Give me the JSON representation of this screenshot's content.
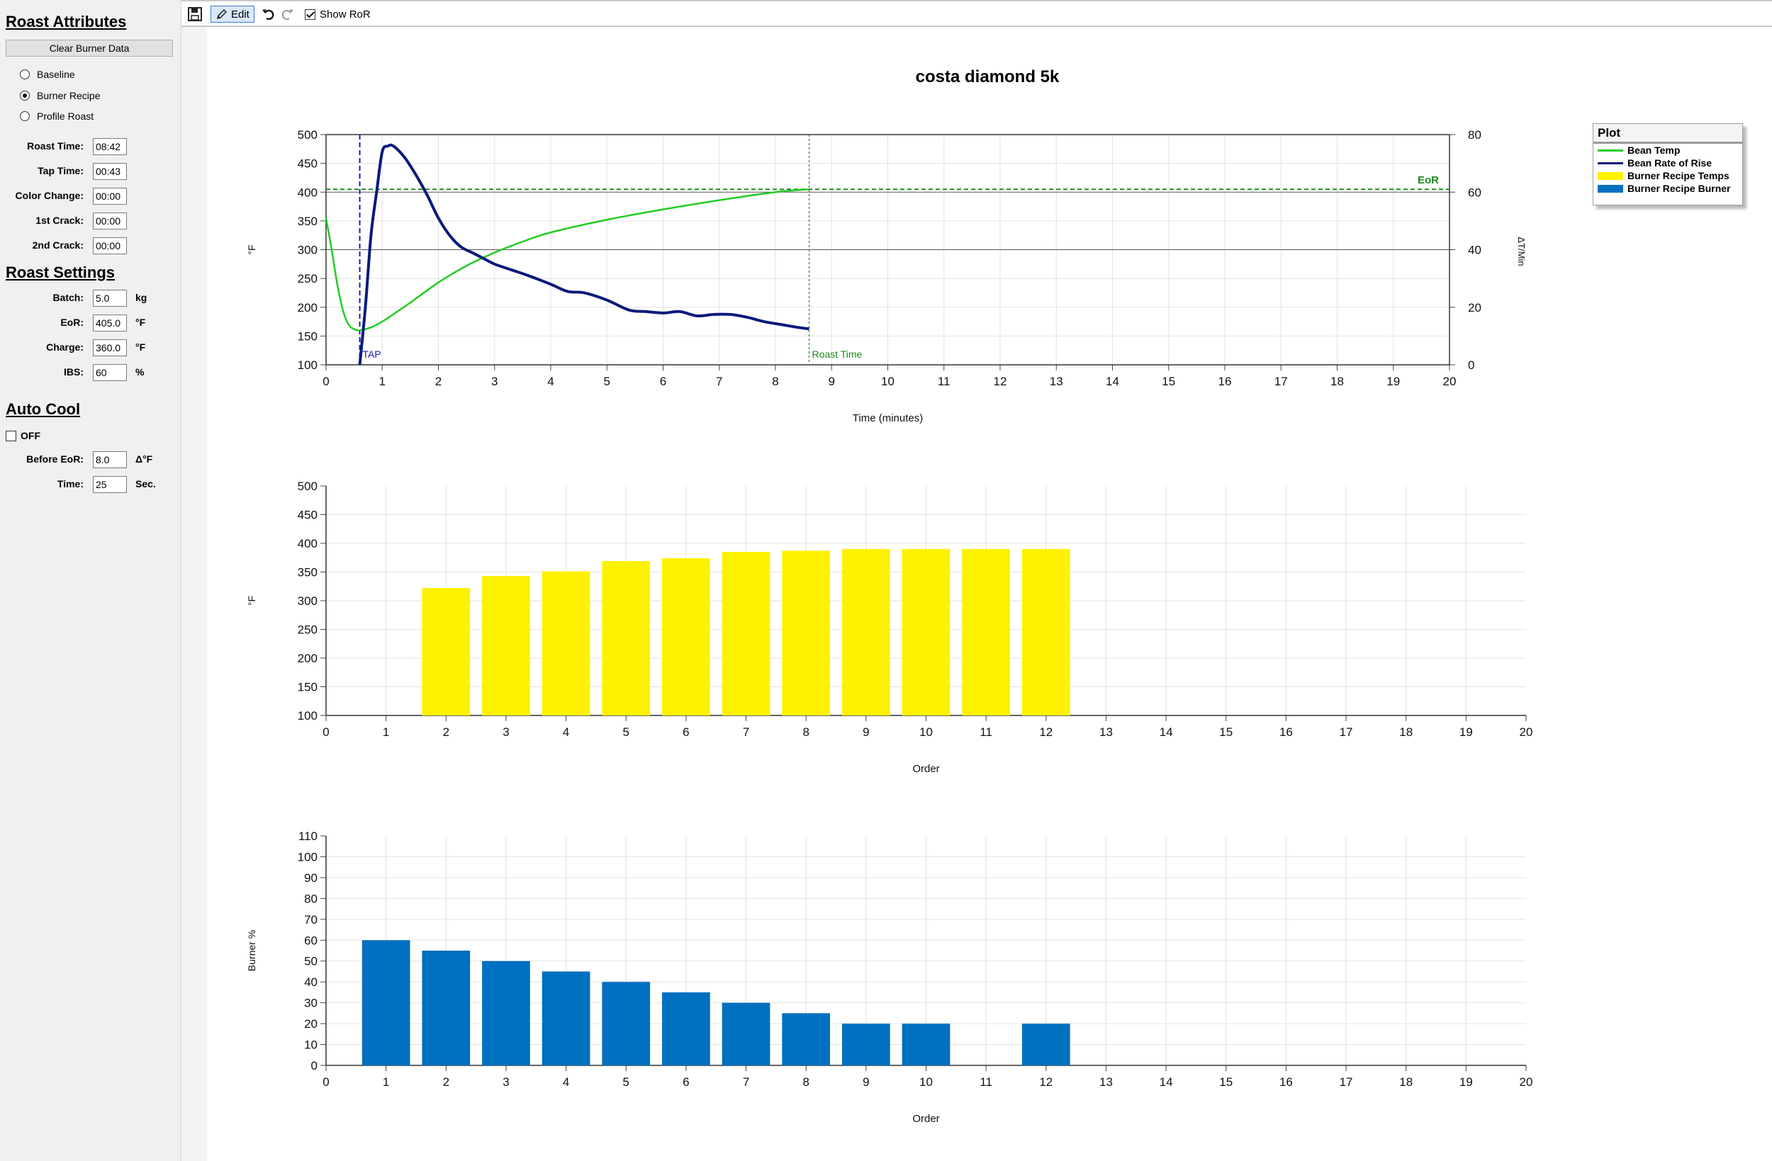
{
  "toolbar": {
    "edit_label": "Edit",
    "show_ror_label": "Show RoR",
    "show_ror_checked": true
  },
  "roast_attributes": {
    "title": "Roast Attributes",
    "clear_button": "Clear Burner Data",
    "modes": [
      {
        "label": "Baseline",
        "selected": false
      },
      {
        "label": "Burner Recipe",
        "selected": true
      },
      {
        "label": "Profile Roast",
        "selected": false
      }
    ],
    "fields": [
      {
        "label": "Roast Time:",
        "value": "08:42"
      },
      {
        "label": "Tap Time:",
        "value": "00:43"
      },
      {
        "label": "Color Change:",
        "value": "00:00"
      },
      {
        "label": "1st Crack:",
        "value": "00:00"
      },
      {
        "label": "2nd Crack:",
        "value": "00:00"
      }
    ]
  },
  "roast_settings": {
    "title": "Roast Settings",
    "fields": [
      {
        "label": "Batch:",
        "value": "5.0",
        "unit": "kg"
      },
      {
        "label": "EoR:",
        "value": "405.0",
        "unit": "°F"
      },
      {
        "label": "Charge:",
        "value": "360.0",
        "unit": "°F"
      },
      {
        "label": "IBS:",
        "value": "60",
        "unit": "%"
      }
    ]
  },
  "auto_cool": {
    "title": "Auto Cool",
    "toggle_label": "OFF",
    "enabled": false,
    "fields": [
      {
        "label": "Before EoR:",
        "value": "8.0",
        "unit": "Δ°F"
      },
      {
        "label": "Time:",
        "value": "25",
        "unit": "Sec."
      }
    ]
  },
  "legend": {
    "title": "Plot",
    "items": [
      {
        "label": "Bean Temp",
        "color": "#22cc22",
        "kind": "line"
      },
      {
        "label": "Bean Rate of Rise",
        "color": "#0a1a7a",
        "kind": "line"
      },
      {
        "label": "Burner Recipe Temps",
        "color": "#fff200",
        "kind": "box"
      },
      {
        "label": "Burner Recipe Burner",
        "color": "#0070c0",
        "kind": "box"
      }
    ]
  },
  "chart_data": [
    {
      "type": "line",
      "title": "costa diamond 5k",
      "xlabel": "Time (minutes)",
      "ylabel": "°F",
      "y2label": "ΔT/Min",
      "xlim": [
        0,
        20
      ],
      "ylim": [
        100,
        500
      ],
      "y2lim": [
        0,
        80
      ],
      "x_ticks": [
        "0",
        "1",
        "2",
        "3",
        "4",
        "5",
        "6",
        "7",
        "8",
        "9",
        "10",
        "11",
        "12",
        "13",
        "14",
        "15",
        "16",
        "17",
        "18",
        "19",
        "20"
      ],
      "y_ticks": [
        "100",
        "150",
        "200",
        "250",
        "300",
        "350",
        "400",
        "450",
        "500"
      ],
      "y2_ticks": [
        "0",
        "20",
        "40",
        "60",
        "80"
      ],
      "series": [
        {
          "name": "Bean Temp",
          "color": "#22cc22",
          "axis": "left",
          "x": [
            0,
            0.1,
            0.2,
            0.3,
            0.4,
            0.5,
            0.6,
            0.8,
            1.0,
            1.2,
            1.5,
            2.0,
            2.5,
            3.0,
            3.5,
            4.0,
            5.0,
            6.0,
            7.0,
            8.0,
            8.6
          ],
          "y": [
            355,
            300,
            240,
            195,
            170,
            162,
            160,
            165,
            175,
            188,
            208,
            243,
            272,
            295,
            314,
            330,
            352,
            370,
            386,
            400,
            405
          ]
        },
        {
          "name": "Bean Rate of Rise",
          "color": "#0a1a7a",
          "axis": "right",
          "x": [
            0.6,
            0.7,
            0.8,
            0.9,
            1.0,
            1.1,
            1.2,
            1.4,
            1.6,
            1.8,
            2.0,
            2.2,
            2.4,
            2.6,
            2.8,
            3.0,
            3.3,
            3.6,
            4.0,
            4.3,
            4.6,
            5.0,
            5.4,
            5.7,
            6.0,
            6.3,
            6.6,
            6.9,
            7.2,
            7.5,
            7.8,
            8.1,
            8.4,
            8.6
          ],
          "y": [
            0,
            20,
            45,
            60,
            74,
            76,
            76,
            72,
            66,
            59,
            51,
            45,
            41,
            39,
            37,
            35,
            33,
            31,
            28,
            25.5,
            25,
            22.5,
            19,
            18.5,
            18,
            18.5,
            17,
            17.5,
            17.5,
            16.5,
            15,
            14,
            13,
            12.5
          ]
        }
      ],
      "reference_lines": [
        {
          "label": "EoR",
          "axis": "y",
          "value": 405,
          "color": "#1a8a1a"
        },
        {
          "label": "TAP",
          "axis": "x",
          "value": 0.6,
          "color": "#1a1ab8"
        },
        {
          "label": "Roast Time",
          "axis": "x",
          "value": 8.6,
          "color": "#1a8a1a"
        }
      ]
    },
    {
      "type": "bar",
      "xlabel": "Order",
      "ylabel": "°F",
      "xlim": [
        0,
        20
      ],
      "ylim": [
        100,
        500
      ],
      "x_ticks": [
        "0",
        "1",
        "2",
        "3",
        "4",
        "5",
        "6",
        "7",
        "8",
        "9",
        "10",
        "11",
        "12",
        "13",
        "14",
        "15",
        "16",
        "17",
        "18",
        "19",
        "20"
      ],
      "y_ticks": [
        "100",
        "150",
        "200",
        "250",
        "300",
        "350",
        "400",
        "450",
        "500"
      ],
      "color": "#fff200",
      "x": [
        2,
        3,
        4,
        5,
        6,
        7,
        8,
        9,
        10,
        11,
        12
      ],
      "values": [
        322,
        343,
        351,
        369,
        374,
        385,
        387,
        390,
        390,
        390,
        390
      ]
    },
    {
      "type": "bar",
      "xlabel": "Order",
      "ylabel": "Burner %",
      "xlim": [
        0,
        20
      ],
      "ylim": [
        0,
        110
      ],
      "x_ticks": [
        "0",
        "1",
        "2",
        "3",
        "4",
        "5",
        "6",
        "7",
        "8",
        "9",
        "10",
        "11",
        "12",
        "13",
        "14",
        "15",
        "16",
        "17",
        "18",
        "19",
        "20"
      ],
      "y_ticks": [
        "0",
        "10",
        "20",
        "30",
        "40",
        "50",
        "60",
        "70",
        "80",
        "90",
        "100",
        "110"
      ],
      "color": "#0070c0",
      "x": [
        1,
        2,
        3,
        4,
        5,
        6,
        7,
        8,
        9,
        10,
        12
      ],
      "values": [
        60,
        55,
        50,
        45,
        40,
        35,
        30,
        25,
        20,
        20,
        20
      ]
    }
  ]
}
